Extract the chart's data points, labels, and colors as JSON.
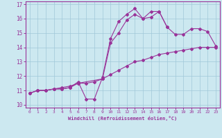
{
  "xlabel": "Windchill (Refroidissement éolien,°C)",
  "background_color": "#cce8f0",
  "line_color": "#993399",
  "xlim": [
    -0.5,
    23.5
  ],
  "ylim": [
    9.8,
    17.2
  ],
  "yticks": [
    10,
    11,
    12,
    13,
    14,
    15,
    16,
    17
  ],
  "xticks": [
    0,
    1,
    2,
    3,
    4,
    5,
    6,
    7,
    8,
    9,
    10,
    11,
    12,
    13,
    14,
    15,
    16,
    17,
    18,
    19,
    20,
    21,
    22,
    23
  ],
  "series1_x": [
    0,
    1,
    2,
    3,
    4,
    5,
    6,
    7,
    8,
    9,
    10,
    11,
    12,
    13,
    14,
    15,
    16,
    17,
    18,
    19,
    20,
    21,
    22,
    23
  ],
  "series1_y": [
    10.8,
    11.0,
    11.0,
    11.1,
    11.1,
    11.2,
    11.6,
    10.4,
    10.4,
    11.9,
    14.6,
    15.8,
    16.3,
    16.7,
    16.0,
    16.1,
    16.5,
    15.4,
    null,
    null,
    null,
    null,
    null,
    null
  ],
  "series2_x": [
    0,
    1,
    2,
    3,
    4,
    5,
    6,
    7,
    8,
    9,
    10,
    11,
    12,
    13,
    14,
    15,
    16,
    17,
    18,
    19,
    20,
    21,
    22,
    23
  ],
  "series2_y": [
    10.8,
    11.0,
    11.0,
    11.1,
    11.2,
    11.3,
    11.5,
    11.5,
    11.6,
    11.8,
    12.1,
    12.4,
    12.7,
    13.0,
    13.1,
    13.3,
    13.5,
    13.6,
    13.7,
    13.8,
    13.9,
    14.0,
    14.0,
    14.0
  ],
  "series3_x": [
    0,
    1,
    2,
    3,
    4,
    5,
    6,
    9,
    10,
    11,
    12,
    13,
    14,
    15,
    16,
    17,
    18,
    19,
    20,
    21,
    22,
    23
  ],
  "series3_y": [
    10.8,
    11.0,
    11.0,
    11.1,
    11.1,
    11.2,
    11.5,
    11.8,
    14.3,
    15.0,
    15.9,
    16.3,
    16.0,
    16.5,
    16.5,
    15.4,
    14.9,
    14.9,
    15.3,
    15.3,
    15.1,
    14.1
  ]
}
